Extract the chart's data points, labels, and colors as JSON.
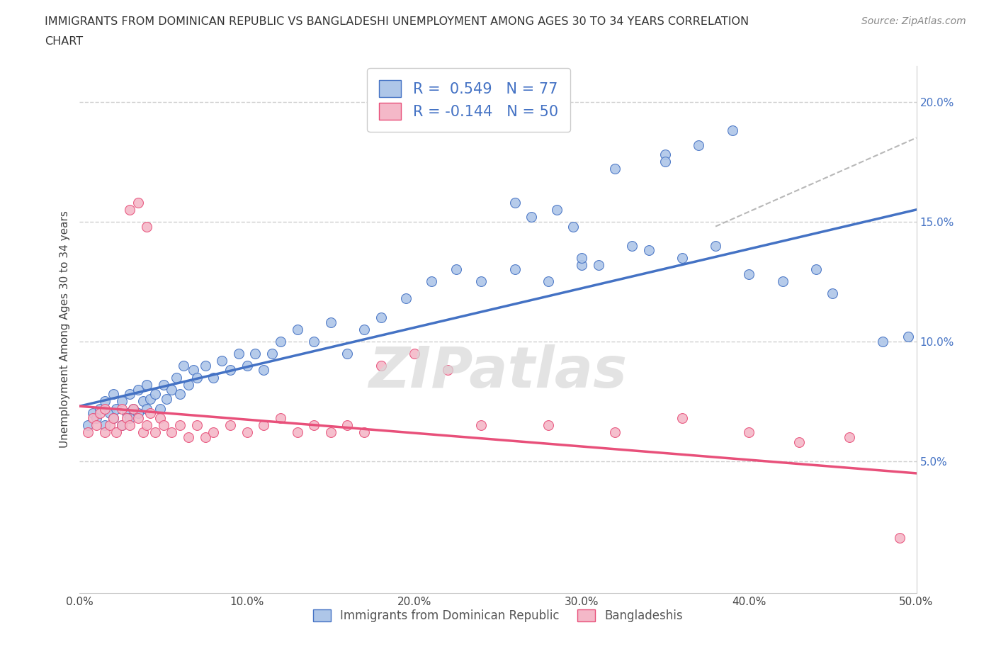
{
  "title": "IMMIGRANTS FROM DOMINICAN REPUBLIC VS BANGLADESHI UNEMPLOYMENT AMONG AGES 30 TO 34 YEARS CORRELATION\nCHART",
  "source": "Source: ZipAtlas.com",
  "ylabel": "Unemployment Among Ages 30 to 34 years",
  "xlim": [
    0.0,
    0.5
  ],
  "ylim": [
    -0.005,
    0.215
  ],
  "yticks": [
    0.05,
    0.1,
    0.15,
    0.2
  ],
  "ytick_labels": [
    "5.0%",
    "10.0%",
    "15.0%",
    "20.0%"
  ],
  "xticks": [
    0.0,
    0.1,
    0.2,
    0.3,
    0.4,
    0.5
  ],
  "xtick_labels": [
    "0.0%",
    "10.0%",
    "20.0%",
    "30.0%",
    "40.0%",
    "50.0%"
  ],
  "color_blue": "#aec6e8",
  "color_pink": "#f4b8c8",
  "line_blue": "#4472c4",
  "line_pink": "#e8507a",
  "line_dash": "#b8b8b8",
  "watermark": "ZIPatlas",
  "background_color": "#ffffff",
  "grid_color": "#d0d0d0",
  "blue_scatter_x": [
    0.005,
    0.008,
    0.01,
    0.012,
    0.015,
    0.015,
    0.018,
    0.02,
    0.02,
    0.022,
    0.025,
    0.025,
    0.028,
    0.03,
    0.03,
    0.032,
    0.035,
    0.035,
    0.038,
    0.04,
    0.04,
    0.042,
    0.045,
    0.048,
    0.05,
    0.052,
    0.055,
    0.058,
    0.06,
    0.062,
    0.065,
    0.068,
    0.07,
    0.075,
    0.08,
    0.085,
    0.09,
    0.095,
    0.1,
    0.105,
    0.11,
    0.115,
    0.12,
    0.13,
    0.14,
    0.15,
    0.16,
    0.17,
    0.18,
    0.195,
    0.21,
    0.225,
    0.24,
    0.26,
    0.28,
    0.3,
    0.32,
    0.35,
    0.37,
    0.39,
    0.3,
    0.31,
    0.33,
    0.34,
    0.36,
    0.38,
    0.26,
    0.27,
    0.285,
    0.295,
    0.4,
    0.42,
    0.44,
    0.45,
    0.48,
    0.495,
    0.35
  ],
  "blue_scatter_y": [
    0.065,
    0.07,
    0.068,
    0.072,
    0.065,
    0.075,
    0.07,
    0.068,
    0.078,
    0.072,
    0.065,
    0.075,
    0.07,
    0.068,
    0.078,
    0.072,
    0.07,
    0.08,
    0.075,
    0.072,
    0.082,
    0.076,
    0.078,
    0.072,
    0.082,
    0.076,
    0.08,
    0.085,
    0.078,
    0.09,
    0.082,
    0.088,
    0.085,
    0.09,
    0.085,
    0.092,
    0.088,
    0.095,
    0.09,
    0.095,
    0.088,
    0.095,
    0.1,
    0.105,
    0.1,
    0.108,
    0.095,
    0.105,
    0.11,
    0.118,
    0.125,
    0.13,
    0.125,
    0.13,
    0.125,
    0.132,
    0.172,
    0.178,
    0.182,
    0.188,
    0.135,
    0.132,
    0.14,
    0.138,
    0.135,
    0.14,
    0.158,
    0.152,
    0.155,
    0.148,
    0.128,
    0.125,
    0.13,
    0.12,
    0.1,
    0.102,
    0.175
  ],
  "pink_scatter_x": [
    0.005,
    0.008,
    0.01,
    0.012,
    0.015,
    0.015,
    0.018,
    0.02,
    0.022,
    0.025,
    0.025,
    0.028,
    0.03,
    0.032,
    0.035,
    0.038,
    0.04,
    0.042,
    0.045,
    0.048,
    0.05,
    0.055,
    0.06,
    0.065,
    0.07,
    0.075,
    0.08,
    0.09,
    0.1,
    0.11,
    0.12,
    0.13,
    0.14,
    0.15,
    0.16,
    0.17,
    0.18,
    0.2,
    0.22,
    0.24,
    0.03,
    0.035,
    0.04,
    0.28,
    0.32,
    0.36,
    0.4,
    0.43,
    0.46,
    0.49
  ],
  "pink_scatter_y": [
    0.062,
    0.068,
    0.065,
    0.07,
    0.062,
    0.072,
    0.065,
    0.068,
    0.062,
    0.065,
    0.072,
    0.068,
    0.065,
    0.072,
    0.068,
    0.062,
    0.065,
    0.07,
    0.062,
    0.068,
    0.065,
    0.062,
    0.065,
    0.06,
    0.065,
    0.06,
    0.062,
    0.065,
    0.062,
    0.065,
    0.068,
    0.062,
    0.065,
    0.062,
    0.065,
    0.062,
    0.09,
    0.095,
    0.088,
    0.065,
    0.155,
    0.158,
    0.148,
    0.065,
    0.062,
    0.068,
    0.062,
    0.058,
    0.06,
    0.018
  ],
  "blue_line_x": [
    0.0,
    0.5
  ],
  "blue_line_y": [
    0.073,
    0.155
  ],
  "pink_line_x": [
    0.0,
    0.5
  ],
  "pink_line_y": [
    0.073,
    0.045
  ],
  "dash_line_x": [
    0.38,
    0.5
  ],
  "dash_line_y": [
    0.148,
    0.185
  ]
}
